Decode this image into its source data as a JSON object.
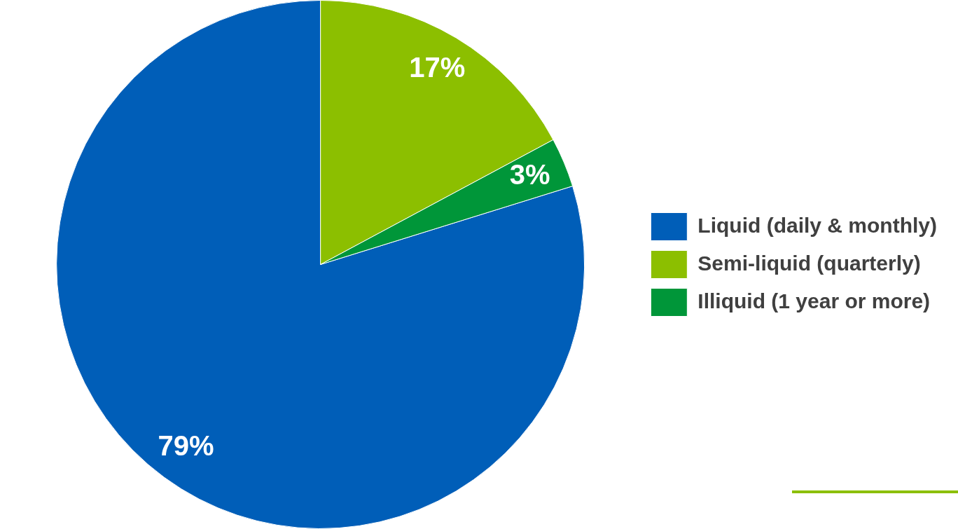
{
  "chart_data": {
    "type": "pie",
    "categories": [
      "Liquid (daily & monthly)",
      "Semi-liquid (quarterly)",
      "Illiquid (1 year or more)"
    ],
    "values": [
      79,
      17,
      3
    ],
    "colors": [
      "#005eb8",
      "#8cbf00",
      "#009639"
    ],
    "value_labels": [
      "79%",
      "17%",
      "3%"
    ],
    "legend": "right"
  }
}
